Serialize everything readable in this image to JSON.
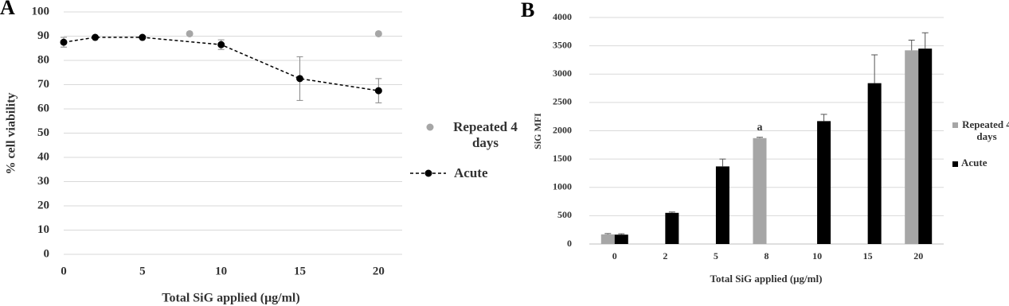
{
  "chart_data": [
    {
      "type": "scatter",
      "label": "A",
      "x_label": "Total SiG applied (μg/ml)",
      "y_label": "% cell viability",
      "xlim": [
        0,
        21.5
      ],
      "xticks": [
        0,
        5,
        10,
        15,
        20
      ],
      "ylim": [
        0,
        100
      ],
      "yticks": [
        0,
        10,
        20,
        30,
        40,
        50,
        60,
        70,
        80,
        90,
        100
      ],
      "grid": true,
      "series": [
        {
          "name": "Repeated 4 days",
          "color": "#a6a6a6",
          "x": [
            8,
            20
          ],
          "values": [
            91,
            91
          ]
        },
        {
          "name": "Acute",
          "color": "#000000",
          "line": "dashed",
          "x": [
            0,
            2,
            5,
            10,
            15,
            20
          ],
          "values": [
            87.5,
            89.5,
            89.5,
            86.5,
            72.5,
            67.5
          ],
          "errors": [
            2,
            null,
            null,
            2,
            9,
            5
          ]
        }
      ]
    },
    {
      "type": "bar",
      "label": "B",
      "x_label": "Total SiG applied (μg/ml)",
      "y_label": "SiG MFI",
      "categories": [
        "0",
        "2",
        "5",
        "8",
        "10",
        "15",
        "20"
      ],
      "ylim": [
        0,
        4000
      ],
      "yticks": [
        0,
        500,
        1000,
        1500,
        2000,
        2500,
        3000,
        3500,
        4000
      ],
      "grid": true,
      "series": [
        {
          "name": "Repeated 4 days",
          "color": "#a6a6a6",
          "values": [
            170,
            null,
            null,
            1870,
            null,
            null,
            3420
          ],
          "errors": [
            15,
            null,
            null,
            15,
            null,
            null,
            180
          ]
        },
        {
          "name": "Acute",
          "color": "#000000",
          "values": [
            165,
            550,
            1370,
            null,
            2170,
            2840,
            3450
          ],
          "errors": [
            15,
            15,
            130,
            null,
            120,
            500,
            280
          ]
        }
      ],
      "annotations": [
        {
          "text": "a",
          "x": "8"
        }
      ]
    }
  ]
}
